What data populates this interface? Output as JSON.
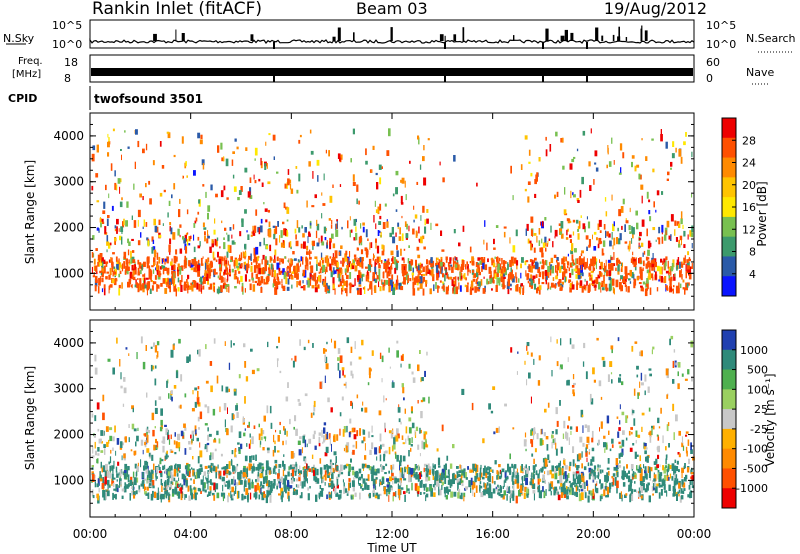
{
  "header": {
    "station": "Rankin Inlet (fitACF)",
    "beam": "Beam 03",
    "date": "19/Aug/2012"
  },
  "top_panels": {
    "nsky_label": "N.Sky",
    "nsky_ticks": [
      "10^5",
      "10^0"
    ],
    "nsearch_label": "N.Search",
    "nsearch_ticks": [
      "10^5",
      "10^0"
    ],
    "freq_label_1": "Freq.",
    "freq_label_2": "[MHz]",
    "freq_ticks": [
      "18",
      "8"
    ],
    "nave_label": "Nave",
    "nave_ticks": [
      "60",
      "0"
    ],
    "cpid_label": "CPID",
    "cpid_value": "twofsound 3501"
  },
  "chart_data": [
    {
      "type": "heatmap",
      "name": "power",
      "ylabel": "Slant Range [km]",
      "yticks": [
        "1000",
        "2000",
        "3000",
        "4000"
      ],
      "ylim": [
        200,
        4500
      ],
      "colorbar_label": "Power [dB]",
      "colorbar_ticks": [
        "28",
        "24",
        "20",
        "16",
        "12",
        "8",
        "4"
      ],
      "colorbar_colors": [
        "#ee0000",
        "#ff5000",
        "#ff8a00",
        "#ffc400",
        "#ffe800",
        "#78c050",
        "#3c9a6c",
        "#2a5aa8",
        "#0a14ff"
      ]
    },
    {
      "type": "heatmap",
      "name": "velocity",
      "ylabel": "Slant Range [km]",
      "yticks": [
        "1000",
        "2000",
        "3000",
        "4000"
      ],
      "ylim": [
        200,
        4500
      ],
      "xlabel": "Time UT",
      "xticks": [
        "00:00",
        "04:00",
        "08:00",
        "12:00",
        "16:00",
        "20:00",
        "00:00"
      ],
      "colorbar_label": "Velocity [m s⁻¹]",
      "colorbar_ticks": [
        "1000",
        "500",
        "100",
        "25",
        "-25",
        "-100",
        "-500",
        "-1000"
      ],
      "colorbar_colors": [
        "#2040b0",
        "#2f8a7a",
        "#4fb04f",
        "#9ad060",
        "#c8c8c8",
        "#ffb000",
        "#ff8a00",
        "#ff5000",
        "#ee0000"
      ]
    }
  ]
}
